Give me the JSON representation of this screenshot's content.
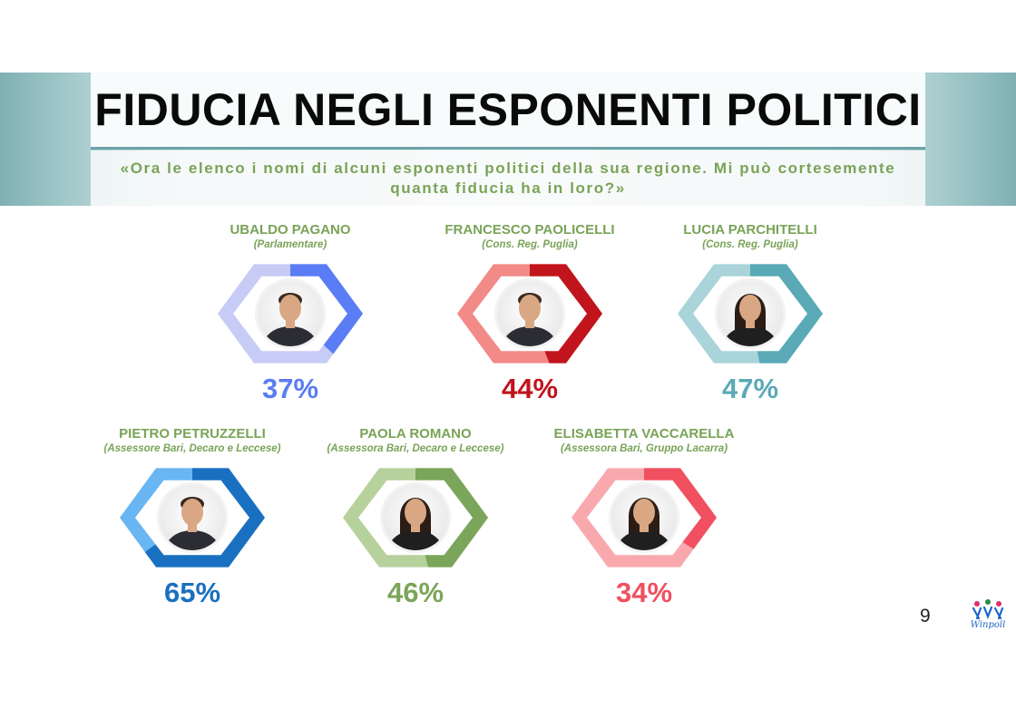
{
  "title": "FIDUCIA NEGLI ESPONENTI POLITICI",
  "subtitle": "«Ora le elenco i nomi di alcuni esponenti politici della sua regione. Mi può cortesemente quanta fiducia ha in loro?»",
  "page_number": "9",
  "logo_text": "Winpoll",
  "chart_data": {
    "type": "donut",
    "unit": "%",
    "items": [
      {
        "name": "UBALDO PAGANO",
        "role": "(Parlamentare)",
        "value": 37,
        "label": "37%",
        "color": "#5a7cf4",
        "track_color": "#c7ccf6",
        "avatar": "man-portrait-icon"
      },
      {
        "name": "FRANCESCO PAOLICELLI",
        "role": "(Cons. Reg. Puglia)",
        "value": 44,
        "label": "44%",
        "color": "#c2141c",
        "track_color": "#f28a88",
        "avatar": "man-portrait-icon"
      },
      {
        "name": "LUCIA PARCHITELLI",
        "role": "(Cons. Reg. Puglia)",
        "value": 47,
        "label": "47%",
        "color": "#5aa9b6",
        "track_color": "#a9d4da",
        "avatar": "woman-portrait-icon"
      },
      {
        "name": "PIETRO PETRUZZELLI",
        "role": "(Assessore Bari, Decaro e Leccese)",
        "value": 65,
        "label": "65%",
        "color": "#1a70c0",
        "track_color": "#69b6f2",
        "avatar": "man-portrait-icon"
      },
      {
        "name": "PAOLA ROMANO",
        "role": "(Assessora Bari, Decaro e Leccese)",
        "value": 46,
        "label": "46%",
        "color": "#7aa55a",
        "track_color": "#b7d19c",
        "avatar": "woman-portrait-icon"
      },
      {
        "name": "ELISABETTA VACCARELLA",
        "role": "(Assessora Bari, Gruppo Lacarra)",
        "value": 34,
        "label": "34%",
        "color": "#f05060",
        "track_color": "#f9a9ae",
        "avatar": "woman-portrait-icon"
      }
    ]
  }
}
